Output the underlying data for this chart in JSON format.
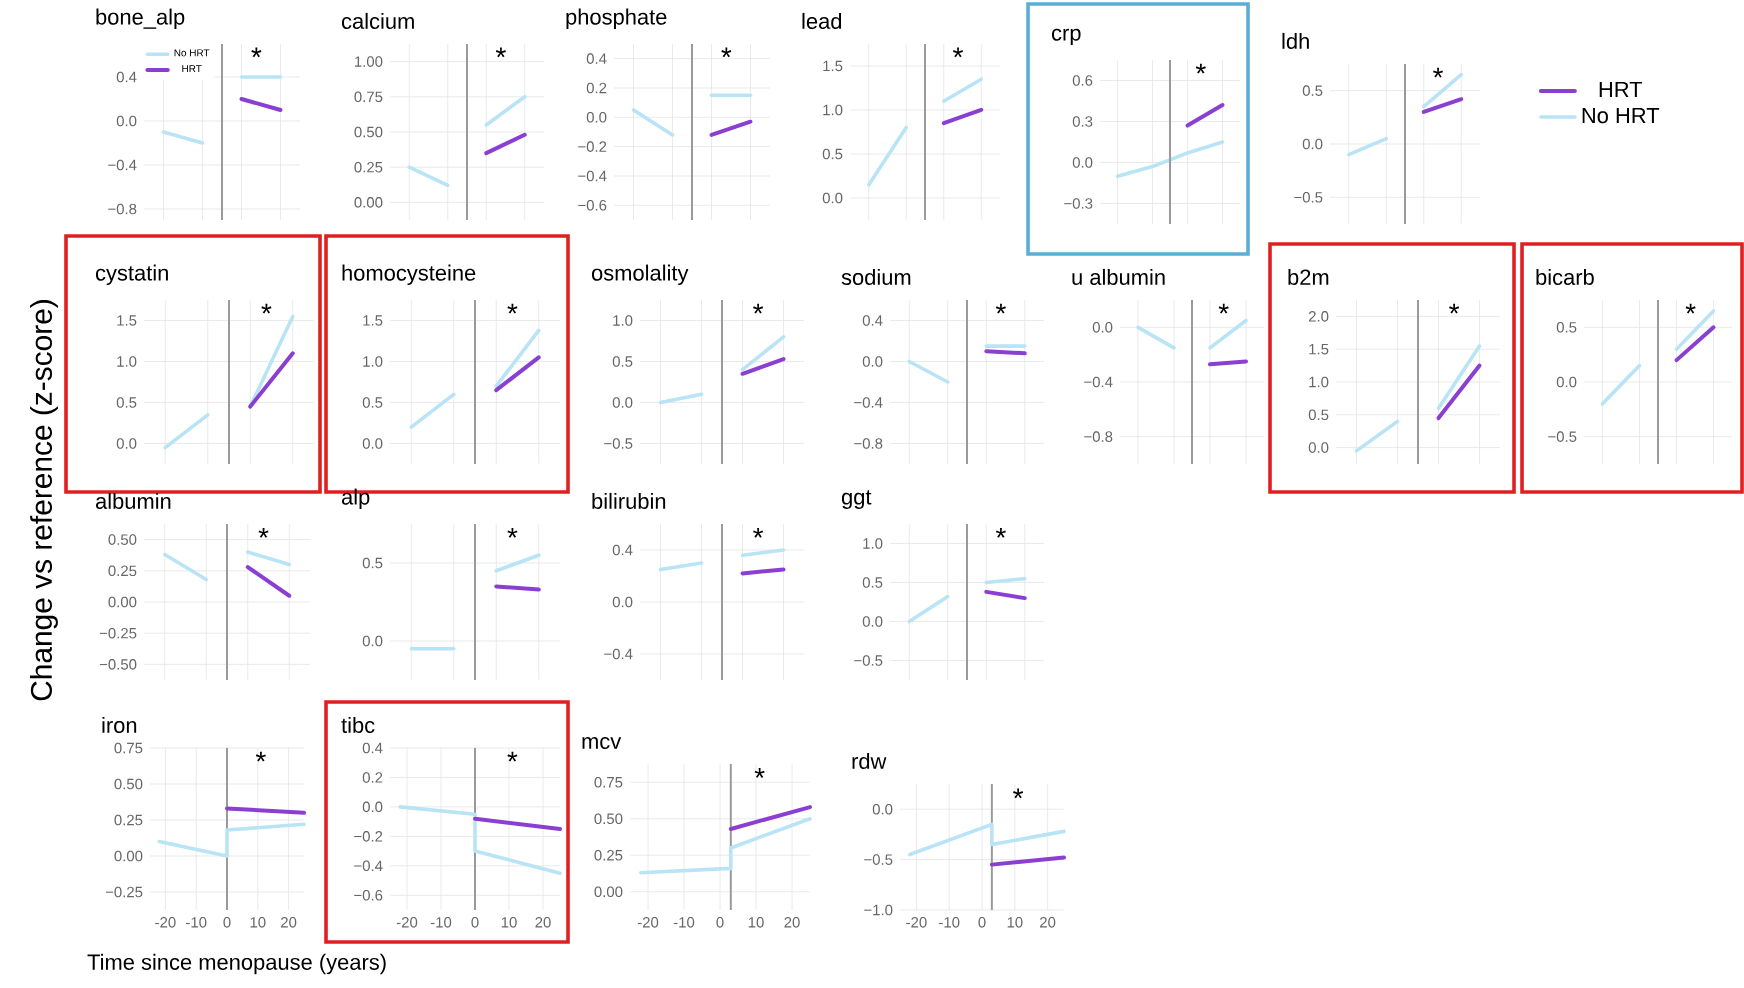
{
  "chart_data": [
    {
      "type": "line",
      "title": "bone_alp",
      "categories": [
        null,
        null,
        null,
        null
      ],
      "ylim": [
        -0.9,
        0.7
      ],
      "yticks": [
        {
          "value": -0.8,
          "label": "−0.8"
        },
        {
          "value": -0.4,
          "label": "−0.4"
        },
        {
          "value": 0,
          "label": "0.0"
        },
        {
          "value": 0.4,
          "label": "0.4"
        }
      ],
      "grid": true,
      "legend": "top left",
      "annotations": [
        "*"
      ],
      "series": [
        {
          "name": "No HRT",
          "color": "#b8e4f5",
          "values": [
            -0.1,
            -0.2,
            null,
            null
          ]
        },
        {
          "color": "#b8e4f5",
          "values": [
            null,
            null,
            0.4,
            0.4
          ]
        },
        {
          "name": "HRT",
          "color": "#8a3fd1",
          "values": [
            null,
            null,
            0.2,
            0.1
          ]
        }
      ]
    },
    {
      "type": "line",
      "title": "calcium",
      "categories": [
        null,
        null,
        null,
        null
      ],
      "ylim": [
        -0.125,
        1.125
      ],
      "yticks": [
        {
          "value": 0,
          "label": "0.00"
        },
        {
          "value": 0.25,
          "label": "0.25"
        },
        {
          "value": 0.5,
          "label": "0.50"
        },
        {
          "value": 0.75,
          "label": "0.75"
        },
        {
          "value": 1,
          "label": "1.00"
        }
      ],
      "grid": true,
      "annotations": [
        "*"
      ],
      "series": [
        {
          "color": "#b8e4f5",
          "values": [
            0.25,
            0.12,
            null,
            null
          ]
        },
        {
          "color": "#b8e4f5",
          "values": [
            null,
            null,
            0.55,
            0.75
          ]
        },
        {
          "color": "#8a3fd1",
          "values": [
            null,
            null,
            0.35,
            0.48
          ]
        }
      ]
    },
    {
      "type": "line",
      "title": "phosphate",
      "categories": [
        null,
        null,
        null,
        null
      ],
      "ylim": [
        -0.7,
        0.5
      ],
      "yticks": [
        {
          "value": -0.6,
          "label": "−0.6"
        },
        {
          "value": -0.4,
          "label": "−0.4"
        },
        {
          "value": -0.2,
          "label": "−0.2"
        },
        {
          "value": 0,
          "label": "0.0"
        },
        {
          "value": 0.2,
          "label": "0.2"
        },
        {
          "value": 0.4,
          "label": "0.4"
        }
      ],
      "grid": true,
      "annotations": [
        "*"
      ],
      "series": [
        {
          "color": "#b8e4f5",
          "values": [
            0.05,
            -0.12,
            null,
            null
          ]
        },
        {
          "color": "#b8e4f5",
          "values": [
            null,
            null,
            0.15,
            0.15
          ]
        },
        {
          "color": "#8a3fd1",
          "values": [
            null,
            null,
            -0.12,
            -0.03
          ]
        }
      ]
    },
    {
      "type": "line",
      "title": "lead",
      "categories": [
        null,
        null,
        null,
        null
      ],
      "ylim": [
        -0.25,
        1.75
      ],
      "yticks": [
        {
          "value": 0,
          "label": "0.0"
        },
        {
          "value": 0.5,
          "label": "0.5"
        },
        {
          "value": 1,
          "label": "1.0"
        },
        {
          "value": 1.5,
          "label": "1.5"
        }
      ],
      "grid": true,
      "annotations": [
        "*"
      ],
      "series": [
        {
          "color": "#b8e4f5",
          "values": [
            0.15,
            0.8,
            null,
            null
          ]
        },
        {
          "color": "#b8e4f5",
          "values": [
            null,
            null,
            1.1,
            1.35
          ]
        },
        {
          "color": "#8a3fd1",
          "values": [
            null,
            null,
            0.85,
            1.0
          ]
        }
      ]
    },
    {
      "type": "line",
      "title": "crp",
      "categories": [
        null,
        null,
        null,
        null
      ],
      "ylim": [
        -0.45,
        0.75
      ],
      "yticks": [
        {
          "value": -0.3,
          "label": "−0.3"
        },
        {
          "value": 0,
          "label": "0.0"
        },
        {
          "value": 0.3,
          "label": "0.3"
        },
        {
          "value": 0.6,
          "label": "0.6"
        }
      ],
      "grid": true,
      "annotations": [
        "*"
      ],
      "series": [
        {
          "color": "#b8e4f5",
          "values": [
            -0.1,
            -0.03,
            0.07,
            0.15
          ]
        },
        {
          "color": "#8a3fd1",
          "values": [
            null,
            null,
            0.27,
            0.42
          ]
        }
      ]
    },
    {
      "type": "line",
      "title": "ldh",
      "categories": [
        null,
        null,
        null,
        null
      ],
      "ylim": [
        -0.75,
        0.75
      ],
      "yticks": [
        {
          "value": -0.5,
          "label": "−0.5"
        },
        {
          "value": 0,
          "label": "0.0"
        },
        {
          "value": 0.5,
          "label": "0.5"
        }
      ],
      "grid": true,
      "legend": "right",
      "annotations": [
        "*"
      ],
      "series": [
        {
          "name": "No HRT",
          "color": "#b8e4f5",
          "values": [
            -0.1,
            0.05,
            null,
            null
          ]
        },
        {
          "color": "#b8e4f5",
          "values": [
            null,
            null,
            0.35,
            0.65
          ]
        },
        {
          "name": "HRT",
          "color": "#8a3fd1",
          "values": [
            null,
            null,
            0.3,
            0.42
          ]
        }
      ]
    },
    {
      "type": "line",
      "title": "cystatin",
      "categories": [
        null,
        null,
        null,
        null
      ],
      "ylim": [
        -0.25,
        1.75
      ],
      "yticks": [
        {
          "value": 0,
          "label": "0.0"
        },
        {
          "value": 0.5,
          "label": "0.5"
        },
        {
          "value": 1,
          "label": "1.0"
        },
        {
          "value": 1.5,
          "label": "1.5"
        }
      ],
      "grid": true,
      "annotations": [
        "*"
      ],
      "series": [
        {
          "color": "#b8e4f5",
          "values": [
            -0.05,
            0.35,
            null,
            null
          ]
        },
        {
          "color": "#b8e4f5",
          "values": [
            null,
            null,
            0.45,
            1.55
          ]
        },
        {
          "color": "#8a3fd1",
          "values": [
            null,
            null,
            0.45,
            1.1
          ]
        }
      ]
    },
    {
      "type": "line",
      "title": "homocysteine",
      "categories": [
        null,
        null,
        null,
        null
      ],
      "ylim": [
        -0.25,
        1.75
      ],
      "yticks": [
        {
          "value": 0,
          "label": "0.0"
        },
        {
          "value": 0.5,
          "label": "0.5"
        },
        {
          "value": 1,
          "label": "1.0"
        },
        {
          "value": 1.5,
          "label": "1.5"
        }
      ],
      "grid": true,
      "annotations": [
        "*"
      ],
      "series": [
        {
          "color": "#b8e4f5",
          "values": [
            0.2,
            0.6,
            null,
            null
          ]
        },
        {
          "color": "#b8e4f5",
          "values": [
            null,
            null,
            0.7,
            1.38
          ]
        },
        {
          "color": "#8a3fd1",
          "values": [
            null,
            null,
            0.65,
            1.05
          ]
        }
      ]
    },
    {
      "type": "line",
      "title": "osmolality",
      "categories": [
        null,
        null,
        null,
        null
      ],
      "ylim": [
        -0.75,
        1.25
      ],
      "yticks": [
        {
          "value": -0.5,
          "label": "−0.5"
        },
        {
          "value": 0,
          "label": "0.0"
        },
        {
          "value": 0.5,
          "label": "0.5"
        },
        {
          "value": 1,
          "label": "1.0"
        }
      ],
      "grid": true,
      "annotations": [
        "*"
      ],
      "series": [
        {
          "color": "#b8e4f5",
          "values": [
            0.0,
            0.1,
            null,
            null
          ]
        },
        {
          "color": "#b8e4f5",
          "values": [
            null,
            null,
            0.4,
            0.8
          ]
        },
        {
          "color": "#8a3fd1",
          "values": [
            null,
            null,
            0.35,
            0.53
          ]
        }
      ]
    },
    {
      "type": "line",
      "title": "sodium",
      "categories": [
        null,
        null,
        null,
        null
      ],
      "ylim": [
        -1.0,
        0.6
      ],
      "yticks": [
        {
          "value": -0.8,
          "label": "−0.8"
        },
        {
          "value": -0.4,
          "label": "−0.4"
        },
        {
          "value": 0,
          "label": "0.0"
        },
        {
          "value": 0.4,
          "label": "0.4"
        }
      ],
      "grid": true,
      "annotations": [
        "*"
      ],
      "series": [
        {
          "color": "#b8e4f5",
          "values": [
            0.0,
            -0.2,
            null,
            null
          ]
        },
        {
          "color": "#b8e4f5",
          "values": [
            null,
            null,
            0.15,
            0.15
          ]
        },
        {
          "color": "#8a3fd1",
          "values": [
            null,
            null,
            0.1,
            0.08
          ]
        }
      ]
    },
    {
      "type": "line",
      "title": "u albumin",
      "categories": [
        null,
        null,
        null,
        null
      ],
      "ylim": [
        -1.0,
        0.2
      ],
      "yticks": [
        {
          "value": -0.8,
          "label": "−0.8"
        },
        {
          "value": -0.4,
          "label": "−0.4"
        },
        {
          "value": 0,
          "label": "0.0"
        }
      ],
      "grid": true,
      "annotations": [
        "*"
      ],
      "series": [
        {
          "color": "#b8e4f5",
          "values": [
            0.0,
            -0.15,
            null,
            null
          ]
        },
        {
          "color": "#b8e4f5",
          "values": [
            null,
            null,
            -0.15,
            0.05
          ]
        },
        {
          "color": "#8a3fd1",
          "values": [
            null,
            null,
            -0.27,
            -0.25
          ]
        }
      ]
    },
    {
      "type": "line",
      "title": "b2m",
      "categories": [
        null,
        null,
        null,
        null
      ],
      "ylim": [
        -0.25,
        2.25
      ],
      "yticks": [
        {
          "value": 0,
          "label": "0.0"
        },
        {
          "value": 0.5,
          "label": "0.5"
        },
        {
          "value": 1,
          "label": "1.0"
        },
        {
          "value": 1.5,
          "label": "1.5"
        },
        {
          "value": 2,
          "label": "2.0"
        }
      ],
      "grid": true,
      "annotations": [
        "*"
      ],
      "series": [
        {
          "color": "#b8e4f5",
          "values": [
            -0.05,
            0.4,
            null,
            null
          ]
        },
        {
          "color": "#b8e4f5",
          "values": [
            null,
            null,
            0.6,
            1.55
          ]
        },
        {
          "color": "#8a3fd1",
          "values": [
            null,
            null,
            0.45,
            1.25
          ]
        }
      ]
    },
    {
      "type": "line",
      "title": "bicarb",
      "categories": [
        null,
        null,
        null,
        null
      ],
      "ylim": [
        -0.75,
        0.75
      ],
      "yticks": [
        {
          "value": -0.5,
          "label": "−0.5"
        },
        {
          "value": 0,
          "label": "0.0"
        },
        {
          "value": 0.5,
          "label": "0.5"
        }
      ],
      "grid": true,
      "annotations": [
        "*"
      ],
      "series": [
        {
          "color": "#b8e4f5",
          "values": [
            -0.2,
            0.15,
            null,
            null
          ]
        },
        {
          "color": "#b8e4f5",
          "values": [
            null,
            null,
            0.3,
            0.65
          ]
        },
        {
          "color": "#8a3fd1",
          "values": [
            null,
            null,
            0.2,
            0.5
          ]
        }
      ]
    },
    {
      "type": "line",
      "title": "albumin",
      "ylabel": "Change vs reference (z-score)",
      "categories": [
        null,
        null,
        null,
        null
      ],
      "ylim": [
        -0.625,
        0.625
      ],
      "yticks": [
        {
          "value": -0.5,
          "label": "−0.50"
        },
        {
          "value": -0.25,
          "label": "−0.25"
        },
        {
          "value": 0,
          "label": "0.00"
        },
        {
          "value": 0.25,
          "label": "0.25"
        },
        {
          "value": 0.5,
          "label": "0.50"
        }
      ],
      "grid": true,
      "annotations": [
        "*"
      ],
      "series": [
        {
          "color": "#b8e4f5",
          "values": [
            0.38,
            0.18,
            null,
            null
          ]
        },
        {
          "color": "#b8e4f5",
          "values": [
            null,
            null,
            0.4,
            0.3
          ]
        },
        {
          "color": "#8a3fd1",
          "values": [
            null,
            null,
            0.28,
            0.05
          ]
        }
      ]
    },
    {
      "type": "line",
      "title": "alp",
      "categories": [
        null,
        null,
        null,
        null
      ],
      "ylim": [
        -0.25,
        0.75
      ],
      "yticks": [
        {
          "value": 0,
          "label": "0.0"
        },
        {
          "value": 0.5,
          "label": "0.5"
        }
      ],
      "grid": true,
      "annotations": [
        "*"
      ],
      "series": [
        {
          "color": "#b8e4f5",
          "values": [
            -0.05,
            -0.05,
            null,
            null
          ]
        },
        {
          "color": "#b8e4f5",
          "values": [
            null,
            null,
            0.45,
            0.55
          ]
        },
        {
          "color": "#8a3fd1",
          "values": [
            null,
            null,
            0.35,
            0.33
          ]
        }
      ]
    },
    {
      "type": "line",
      "title": "bilirubin",
      "categories": [
        null,
        null,
        null,
        null
      ],
      "ylim": [
        -0.6,
        0.6
      ],
      "yticks": [
        {
          "value": -0.4,
          "label": "−0.4"
        },
        {
          "value": 0,
          "label": "0.0"
        },
        {
          "value": 0.4,
          "label": "0.4"
        }
      ],
      "grid": true,
      "annotations": [
        "*"
      ],
      "series": [
        {
          "color": "#b8e4f5",
          "values": [
            0.25,
            0.3,
            null,
            null
          ]
        },
        {
          "color": "#b8e4f5",
          "values": [
            null,
            null,
            0.36,
            0.4
          ]
        },
        {
          "color": "#8a3fd1",
          "values": [
            null,
            null,
            0.22,
            0.25
          ]
        }
      ]
    },
    {
      "type": "line",
      "title": "ggt",
      "categories": [
        null,
        null,
        null,
        null
      ],
      "ylim": [
        -0.75,
        1.25
      ],
      "yticks": [
        {
          "value": -0.5,
          "label": "−0.5"
        },
        {
          "value": 0,
          "label": "0.0"
        },
        {
          "value": 0.5,
          "label": "0.5"
        },
        {
          "value": 1,
          "label": "1.0"
        }
      ],
      "grid": true,
      "annotations": [
        "*"
      ],
      "series": [
        {
          "color": "#b8e4f5",
          "values": [
            0.0,
            0.32,
            null,
            null
          ]
        },
        {
          "color": "#b8e4f5",
          "values": [
            null,
            null,
            0.5,
            0.55
          ]
        },
        {
          "color": "#8a3fd1",
          "values": [
            null,
            null,
            0.38,
            0.3
          ]
        }
      ]
    },
    {
      "type": "line",
      "title": "iron",
      "xlabel": "Time since menopause (years)",
      "xlim": [
        -25,
        25
      ],
      "ylim": [
        -0.375,
        0.75
      ],
      "xticks": [
        -20,
        -10,
        0,
        10,
        20
      ],
      "yticks": [
        {
          "value": -0.25,
          "label": "−0.25"
        },
        {
          "value": 0,
          "label": "0.00"
        },
        {
          "value": 0.25,
          "label": "0.25"
        },
        {
          "value": 0.5,
          "label": "0.50"
        },
        {
          "value": 0.75,
          "label": "0.75"
        }
      ],
      "grid": true,
      "ref_lines": [
        {
          "axis": "x",
          "value": 0,
          "color": "#9a9a9a"
        }
      ],
      "annotations": [
        "*"
      ],
      "series": [
        {
          "color": "#b8e4f5",
          "x": [
            -22,
            0,
            0,
            25
          ],
          "values": [
            0.1,
            0.0,
            0.18,
            0.22
          ]
        },
        {
          "color": "#8a3fd1",
          "x": [
            0,
            25
          ],
          "values": [
            0.33,
            0.3
          ]
        }
      ]
    },
    {
      "type": "line",
      "title": "tibc",
      "xlim": [
        -25,
        25
      ],
      "ylim": [
        -0.7,
        0.4
      ],
      "xticks": [
        -20,
        -10,
        0,
        10,
        20
      ],
      "yticks": [
        {
          "value": -0.6,
          "label": "−0.6"
        },
        {
          "value": -0.4,
          "label": "−0.4"
        },
        {
          "value": -0.2,
          "label": "−0.2"
        },
        {
          "value": 0,
          "label": "0.0"
        },
        {
          "value": 0.2,
          "label": "0.2"
        },
        {
          "value": 0.4,
          "label": "0.4"
        }
      ],
      "grid": true,
      "ref_lines": [
        {
          "axis": "x",
          "value": 0,
          "color": "#9a9a9a"
        }
      ],
      "annotations": [
        "*"
      ],
      "series": [
        {
          "color": "#b8e4f5",
          "x": [
            -22,
            0,
            0,
            25
          ],
          "values": [
            0.0,
            -0.05,
            -0.3,
            -0.45
          ]
        },
        {
          "color": "#8a3fd1",
          "x": [
            0,
            25
          ],
          "values": [
            -0.08,
            -0.15
          ]
        }
      ]
    },
    {
      "type": "line",
      "title": "mcv",
      "xlim": [
        -25,
        25
      ],
      "ylim": [
        -0.125,
        0.875
      ],
      "xticks": [
        -20,
        -10,
        0,
        10,
        20
      ],
      "yticks": [
        {
          "value": 0,
          "label": "0.00"
        },
        {
          "value": 0.25,
          "label": "0.25"
        },
        {
          "value": 0.5,
          "label": "0.50"
        },
        {
          "value": 0.75,
          "label": "0.75"
        }
      ],
      "grid": true,
      "ref_lines": [
        {
          "axis": "x",
          "value": 3,
          "color": "#9a9a9a"
        }
      ],
      "annotations": [
        "*"
      ],
      "series": [
        {
          "color": "#b8e4f5",
          "x": [
            -22,
            3,
            3,
            25
          ],
          "values": [
            0.13,
            0.16,
            0.3,
            0.5
          ]
        },
        {
          "color": "#8a3fd1",
          "x": [
            3,
            25
          ],
          "values": [
            0.43,
            0.58
          ]
        }
      ]
    },
    {
      "type": "line",
      "title": "rdw",
      "xlim": [
        -25,
        25
      ],
      "ylim": [
        -1.0,
        0.25
      ],
      "xticks": [
        -20,
        -10,
        0,
        10,
        20
      ],
      "yticks": [
        {
          "value": -1,
          "label": "−1.0"
        },
        {
          "value": -0.5,
          "label": "−0.5"
        },
        {
          "value": 0,
          "label": "0.0"
        }
      ],
      "grid": true,
      "ref_lines": [
        {
          "axis": "x",
          "value": 3,
          "color": "#9a9a9a"
        }
      ],
      "annotations": [
        "*"
      ],
      "series": [
        {
          "color": "#b8e4f5",
          "x": [
            -22,
            3,
            3,
            25
          ],
          "values": [
            -0.45,
            -0.15,
            -0.35,
            -0.22
          ]
        },
        {
          "color": "#8a3fd1",
          "x": [
            3,
            25
          ],
          "values": [
            -0.55,
            -0.48
          ]
        }
      ]
    }
  ]
}
